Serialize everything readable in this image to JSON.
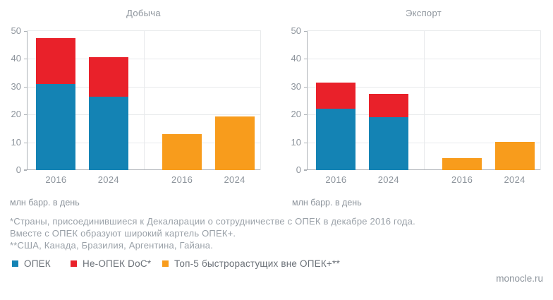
{
  "source": {
    "label": "monocle.ru"
  },
  "footnotes": [
    "*Страны, присоединившиеся к Декаларации о сотрудничестве с ОПЕК в декабре 2016 года.",
    "Вместе с ОПЕК образуют широкий картель ОПЕК+.",
    "**США, Канада, Бразилия, Аргентина, Гайана."
  ],
  "legend": {
    "items": [
      {
        "label": "ОПЕК",
        "color": "#1483b4"
      },
      {
        "label": "Не-ОПЕК DoC*",
        "color": "#e9212a"
      },
      {
        "label": "Топ-5 быстрорастущих вне ОПЕК+**",
        "color": "#f89c1c"
      }
    ]
  },
  "colors": {
    "series": {
      "ОПЕК": "#1483b4",
      "Не-ОПЕК DoC*": "#e9212a",
      "Топ-5 быстрорастущих вне ОПЕК+**": "#f89c1c"
    },
    "grid": "#e8eaec",
    "axis": "#acb1b6",
    "muted_text": "#8d949c"
  },
  "chart_data": [
    {
      "type": "bar",
      "variant": "stacked",
      "title": "Добыча",
      "ylabel": "млн барр. в день",
      "ylim": [
        0,
        50
      ],
      "yticks": [
        0,
        10,
        20,
        30,
        40,
        50
      ],
      "grid": true,
      "categories": [
        "2016",
        "2024",
        "2016",
        "2024"
      ],
      "bars": [
        {
          "label": "2016",
          "segments": [
            {
              "series": "ОПЕК",
              "value": 31
            },
            {
              "series": "Не-ОПЕК DoC*",
              "value": 16.5
            }
          ]
        },
        {
          "label": "2024",
          "segments": [
            {
              "series": "ОПЕК",
              "value": 26.5
            },
            {
              "series": "Не-ОПЕК DoC*",
              "value": 14
            }
          ]
        },
        {
          "label": "2016",
          "segments": [
            {
              "series": "Топ-5 быстрорастущих вне ОПЕК+**",
              "value": 13
            }
          ]
        },
        {
          "label": "2024",
          "segments": [
            {
              "series": "Топ-5 быстрорастущих вне ОПЕК+**",
              "value": 19.3
            }
          ]
        }
      ]
    },
    {
      "type": "bar",
      "variant": "stacked",
      "title": "Экспорт",
      "ylabel": "млн барр. в день",
      "ylim": [
        0,
        50
      ],
      "yticks": [
        0,
        10,
        20,
        30,
        40,
        50
      ],
      "grid": true,
      "categories": [
        "2016",
        "2024",
        "2016",
        "2024"
      ],
      "bars": [
        {
          "label": "2016",
          "segments": [
            {
              "series": "ОПЕК",
              "value": 22
            },
            {
              "series": "Не-ОПЕК DoC*",
              "value": 9.5
            }
          ]
        },
        {
          "label": "2024",
          "segments": [
            {
              "series": "ОПЕК",
              "value": 19
            },
            {
              "series": "Не-ОПЕК DoC*",
              "value": 8.5
            }
          ]
        },
        {
          "label": "2016",
          "segments": [
            {
              "series": "Топ-5 быстрорастущих вне ОПЕК+**",
              "value": 4.3
            }
          ]
        },
        {
          "label": "2024",
          "segments": [
            {
              "series": "Топ-5 быстрорастущих вне ОПЕК+**",
              "value": 10.2
            }
          ]
        }
      ]
    }
  ]
}
